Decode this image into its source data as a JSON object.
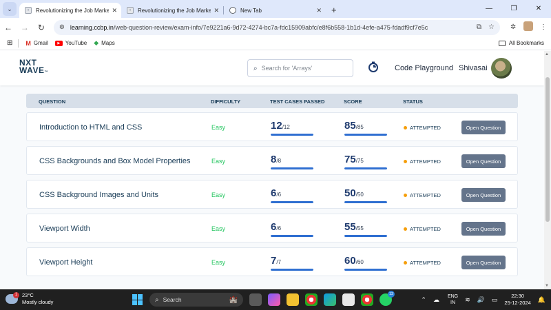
{
  "browser": {
    "tabs": [
      {
        "title": "Revolutionizing the Job Market",
        "active": true
      },
      {
        "title": "Revolutionizing the Job Market",
        "active": false
      },
      {
        "title": "New Tab",
        "active": false
      }
    ],
    "url_host": "learning.ccbp.in",
    "url_path": "/web-question-review/exam-info/7e9221a6-9d72-4274-bc7a-fdc15909abfc/e8f6b558-1b1d-4efe-a475-fdadf9cf7e5c",
    "bookmarks": [
      "Gmail",
      "YouTube",
      "Maps"
    ],
    "all_bookmarks": "All Bookmarks"
  },
  "header": {
    "logo_line1": "NXT",
    "logo_line2": "WAVE",
    "search_placeholder": "Search for 'Arrays'",
    "code_playground": "Code Playground",
    "user_name": "Shivasai"
  },
  "table": {
    "headers": {
      "question": "QUESTION",
      "difficulty": "DIFFICULTY",
      "test_cases": "TEST CASES PASSED",
      "score": "SCORE",
      "status": "STATUS"
    },
    "rows": [
      {
        "title": "Introduction to HTML and CSS",
        "difficulty": "Easy",
        "tc_passed": "12",
        "tc_total": "/12",
        "tc_fraction": 1.0,
        "score": "85",
        "score_total": "/85",
        "score_fraction": 1.0,
        "status": "ATTEMPTED",
        "button": "Open Question"
      },
      {
        "title": "CSS Backgrounds and Box Model Properties",
        "difficulty": "Easy",
        "tc_passed": "8",
        "tc_total": "/8",
        "tc_fraction": 1.0,
        "score": "75",
        "score_total": "/75",
        "score_fraction": 1.0,
        "status": "ATTEMPTED",
        "button": "Open Question"
      },
      {
        "title": "CSS Background Images and Units",
        "difficulty": "Easy",
        "tc_passed": "6",
        "tc_total": "/6",
        "tc_fraction": 1.0,
        "score": "50",
        "score_total": "/50",
        "score_fraction": 1.0,
        "status": "ATTEMPTED",
        "button": "Open Question"
      },
      {
        "title": "Viewport Width",
        "difficulty": "Easy",
        "tc_passed": "6",
        "tc_total": "/6",
        "tc_fraction": 1.0,
        "score": "55",
        "score_total": "/55",
        "score_fraction": 1.0,
        "status": "ATTEMPTED",
        "button": "Open Question"
      },
      {
        "title": "Viewport Height",
        "difficulty": "Easy",
        "tc_passed": "7",
        "tc_total": "/7",
        "tc_fraction": 1.0,
        "score": "60",
        "score_total": "/60",
        "score_fraction": 1.0,
        "status": "ATTEMPTED",
        "button": "Open Question"
      }
    ]
  },
  "colors": {
    "difficulty_easy": "#22c55e",
    "status_dot": "#f59e0b",
    "progress_fill": "#2f6fd1",
    "button_bg": "#64748b",
    "header_row_bg": "#d7dfe9"
  },
  "taskbar": {
    "weather_temp": "23°C",
    "weather_desc": "Mostly cloudy",
    "weather_badge": "1",
    "search_label": "Search",
    "whatsapp_badge": "13",
    "lang_1": "ENG",
    "lang_2": "IN",
    "time": "22:30",
    "date": "25-12-2024"
  }
}
